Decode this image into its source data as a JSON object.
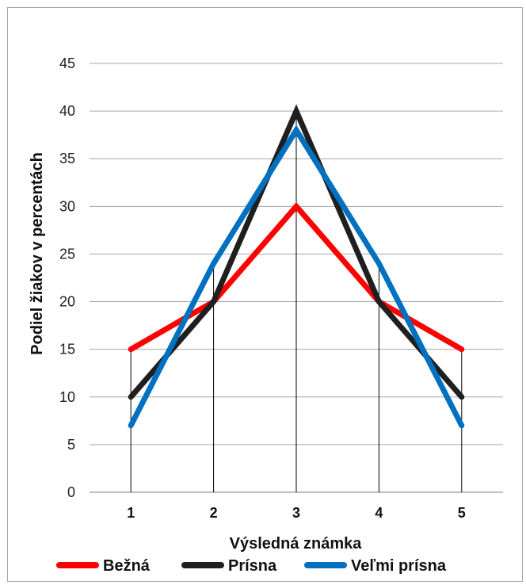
{
  "chart_data": {
    "type": "line",
    "title": "",
    "xlabel": "Výsledná známka",
    "ylabel": "Podiel žiakov v percentách",
    "categories": [
      "1",
      "2",
      "3",
      "4",
      "5"
    ],
    "yticks": [
      "0",
      "5",
      "10",
      "15",
      "20",
      "25",
      "30",
      "35",
      "40",
      "45"
    ],
    "ylim": [
      0,
      45
    ],
    "grid": true,
    "legend_position": "bottom",
    "series": [
      {
        "name": "Bežná",
        "color": "#ff0000",
        "values": [
          15,
          20,
          30,
          20,
          15
        ]
      },
      {
        "name": "Prísna",
        "color": "#1f1f1f",
        "values": [
          10,
          20,
          40,
          20,
          10
        ]
      },
      {
        "name": "Veľmi prísna",
        "color": "#0070c0",
        "values": [
          7,
          24,
          38,
          24,
          7
        ]
      }
    ]
  }
}
